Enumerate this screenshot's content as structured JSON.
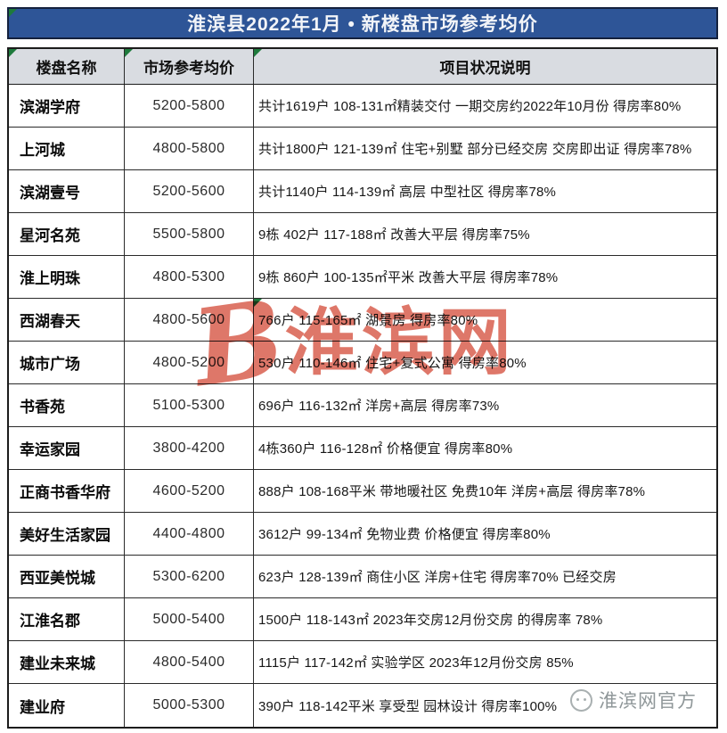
{
  "title": "淮滨县2022年1月 • 新楼盘市场参考均价",
  "columns": [
    "楼盘名称",
    "市场参考均价",
    "项目状况说明"
  ],
  "rows": [
    {
      "name": "滨湖学府",
      "price": "5200-5800",
      "desc": "共计1619户  108-131㎡精装交付  一期交房约2022年10月份  得房率80%"
    },
    {
      "name": "上河城",
      "price": "4800-5800",
      "desc": "共计1800户  121-139㎡  住宅+别墅  部分已经交房  交房即出证  得房率78%"
    },
    {
      "name": "滨湖壹号",
      "price": "5200-5600",
      "desc": "共计1140户  114-139㎡  高层  中型社区  得房率78%"
    },
    {
      "name": "星河名苑",
      "price": "5500-5800",
      "desc": "9栋  402户  117-188㎡  改善大平层  得房率75%"
    },
    {
      "name": "淮上明珠",
      "price": "4800-5300",
      "desc": "9栋  860户  100-135㎡平米  改善大平层  得房率78%"
    },
    {
      "name": "西湖春天",
      "price": "4800-5600",
      "desc": "766户  115-165㎡   湖景房  得房率80%"
    },
    {
      "name": "城市广场",
      "price": "4800-5200",
      "desc": "530户  110-146㎡  住宅+复式公寓  得房率80%"
    },
    {
      "name": "书香苑",
      "price": "5100-5300",
      "desc": "696户  116-132㎡  洋房+高层  得房率73%"
    },
    {
      "name": "幸运家园",
      "price": "3800-4200",
      "desc": "4栋360户  116-128㎡  价格便宜  得房率80%"
    },
    {
      "name": "正商书香华府",
      "price": "4600-5200",
      "desc": "888户  108-168平米  带地暖社区  免费10年  洋房+高层  得房率78%"
    },
    {
      "name": "美好生活家园",
      "price": "4400-4800",
      "desc": "3612户  99-134㎡  免物业费  价格便宜  得房率80%"
    },
    {
      "name": "西亚美悦城",
      "price": "5300-6200",
      "desc": "623户  128-139㎡  商住小区  洋房+住宅  得房率70%  已经交房"
    },
    {
      "name": "江淮名郡",
      "price": "5000-5400",
      "desc": "1500户  118-143㎡  2023年交房12月份交房  的得房率  78%"
    },
    {
      "name": "建业未来城",
      "price": "4800-5400",
      "desc": "1115户  117-142㎡  实验学区  2023年12月份交房  85%"
    },
    {
      "name": "建业府",
      "price": "5000-5300",
      "desc": "390户  118-142平米  享受型  园林设计  得房率100%"
    }
  ],
  "corner_marker_rows": [
    5
  ],
  "watermark": {
    "logo_letter": "B",
    "text": "淮滨网",
    "color": "#d95f4e"
  },
  "footer_watermark": {
    "text": "淮滨网官方"
  },
  "colors": {
    "title_bg": "#2e5597",
    "title_text": "#f2f4f8",
    "header_bg": "#d9dce1",
    "border": "#1c1c1c",
    "triangle_green": "#1e7a3c",
    "watermark_red": "#d95f4e",
    "footer_gray": "#8f9799"
  }
}
